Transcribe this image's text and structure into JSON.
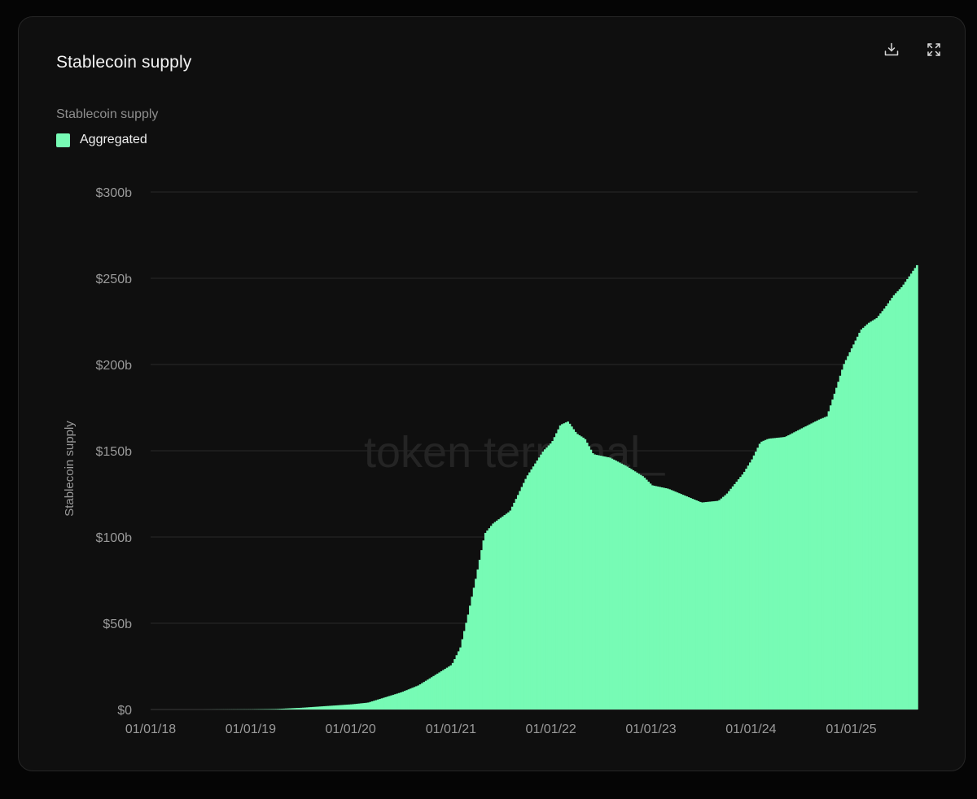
{
  "card": {
    "title": "Stablecoin supply",
    "actions": {
      "download_icon": "download-icon",
      "expand_icon": "expand-icon"
    }
  },
  "metric_label": "Stablecoin supply",
  "legend": {
    "items": [
      {
        "label": "Aggregated",
        "color": "#77fbb5"
      }
    ]
  },
  "watermark": "token terminal_",
  "colors": {
    "background": "#050505",
    "card": "#0f0f0f",
    "bar": "#77fbb5",
    "grid": "#2a2a2a"
  },
  "chart_data": {
    "type": "bar",
    "title": "Stablecoin supply",
    "ylabel": "Stablecoin supply",
    "xlabel": "",
    "ylim": [
      0,
      300
    ],
    "y_ticks": [
      "$0",
      "$50b",
      "$100b",
      "$150b",
      "$200b",
      "$250b",
      "$300b"
    ],
    "x_ticks": [
      "01/01/18",
      "01/01/19",
      "01/01/20",
      "01/01/21",
      "01/01/22",
      "01/01/23",
      "01/01/24",
      "01/01/25"
    ],
    "x_range": [
      "2018-01-01",
      "2025-08-31"
    ],
    "grid": true,
    "legend_position": "top-left",
    "series": [
      {
        "name": "Aggregated",
        "color": "#77fbb5",
        "x": [
          "2018-01-01",
          "2018-07-01",
          "2019-01-01",
          "2019-04-01",
          "2019-07-01",
          "2019-10-01",
          "2020-01-01",
          "2020-03-01",
          "2020-05-01",
          "2020-07-01",
          "2020-09-01",
          "2020-11-01",
          "2021-01-01",
          "2021-02-01",
          "2021-03-01",
          "2021-04-01",
          "2021-05-01",
          "2021-06-01",
          "2021-08-01",
          "2021-09-01",
          "2021-10-01",
          "2021-12-01",
          "2022-01-01",
          "2022-02-01",
          "2022-03-01",
          "2022-04-01",
          "2022-05-01",
          "2022-06-01",
          "2022-08-01",
          "2022-10-01",
          "2022-12-01",
          "2023-01-01",
          "2023-03-01",
          "2023-05-01",
          "2023-07-01",
          "2023-09-01",
          "2023-10-01",
          "2023-12-01",
          "2024-01-01",
          "2024-02-01",
          "2024-03-01",
          "2024-05-01",
          "2024-07-01",
          "2024-09-01",
          "2024-10-01",
          "2024-11-01",
          "2024-12-01",
          "2025-01-01",
          "2025-02-01",
          "2025-03-01",
          "2025-04-01",
          "2025-05-01",
          "2025-06-01",
          "2025-07-01",
          "2025-08-01",
          "2025-08-31"
        ],
        "values": [
          0,
          0,
          0.1,
          0.3,
          1,
          2,
          3,
          4,
          7,
          10,
          14,
          20,
          26,
          36,
          55,
          78,
          102,
          108,
          115,
          125,
          135,
          150,
          155,
          165,
          167,
          160,
          157,
          148,
          146,
          141,
          135,
          130,
          128,
          124,
          120,
          121,
          125,
          137,
          145,
          155,
          157,
          158,
          163,
          168,
          170,
          185,
          200,
          210,
          220,
          224,
          227,
          233,
          240,
          245,
          252,
          259
        ]
      }
    ]
  }
}
